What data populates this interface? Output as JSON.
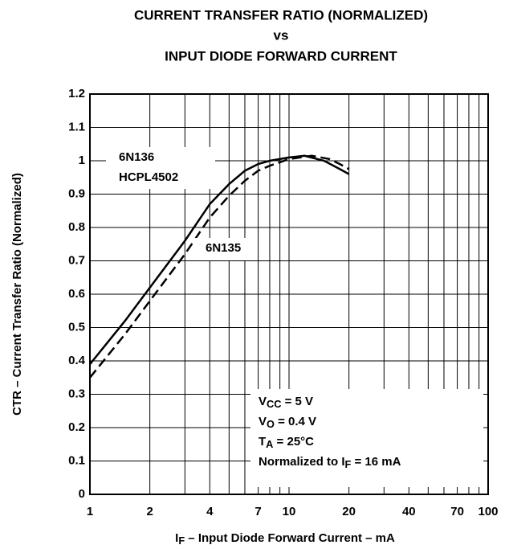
{
  "chart_data": {
    "type": "line",
    "title": [
      "CURRENT TRANSFER RATIO (NORMALIZED)",
      "vs",
      "INPUT DIODE FORWARD CURRENT"
    ],
    "xlabel": [
      "I",
      "F",
      " – Input Diode Forward Current – mA"
    ],
    "ylabel": "CTR – Current Transfer Ratio (Normalized)",
    "xscale": "log",
    "xlim": [
      1,
      100
    ],
    "xticks": [
      1,
      2,
      4,
      7,
      10,
      20,
      40,
      70,
      100
    ],
    "x_minor_grid": [
      3,
      5,
      6,
      8,
      9,
      30,
      50,
      60,
      80,
      90
    ],
    "ylim": [
      0,
      1.2
    ],
    "yticks": [
      0,
      0.1,
      0.2,
      0.3,
      0.4,
      0.5,
      0.6,
      0.7,
      0.8,
      0.9,
      1,
      1.1,
      1.2
    ],
    "grid": true,
    "series": [
      {
        "name": [
          "6N136",
          "HCPL4502"
        ],
        "color": "#000000",
        "dash": false,
        "x": [
          1,
          1.5,
          2,
          3,
          4,
          5,
          6,
          7,
          8,
          10,
          12,
          15,
          18,
          20
        ],
        "values": [
          0.39,
          0.52,
          0.62,
          0.76,
          0.87,
          0.93,
          0.97,
          0.99,
          1.0,
          1.01,
          1.015,
          1.0,
          0.975,
          0.96
        ]
      },
      {
        "name": [
          "6N135"
        ],
        "color": "#000000",
        "dash": true,
        "x": [
          1,
          1.5,
          2,
          3,
          4,
          5,
          6,
          7,
          8,
          10,
          13,
          16,
          18,
          20
        ],
        "values": [
          0.35,
          0.48,
          0.58,
          0.72,
          0.83,
          0.895,
          0.94,
          0.97,
          0.985,
          1.005,
          1.015,
          1.005,
          0.99,
          0.975
        ]
      }
    ],
    "annotations": [
      [
        "V",
        "CC",
        " = 5 V"
      ],
      [
        "V",
        "O",
        " = 0.4 V"
      ],
      [
        "T",
        "A",
        " = 25°C"
      ],
      [
        "Normalized to I",
        "F",
        " = 16 mA"
      ]
    ]
  }
}
